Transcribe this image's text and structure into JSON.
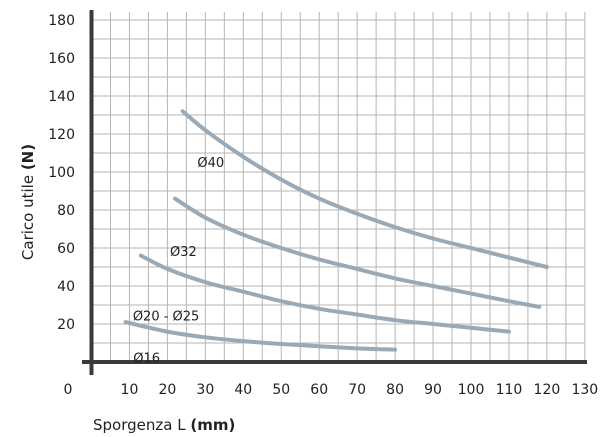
{
  "chart_data": {
    "type": "line",
    "xlabel": {
      "text": "Sporgenza L",
      "unit": "(mm)"
    },
    "ylabel": {
      "text": "Carico utile",
      "unit": "(N)"
    },
    "xlim": [
      0,
      130
    ],
    "ylim": [
      0,
      180
    ],
    "xticks": [
      0,
      10,
      20,
      30,
      40,
      50,
      60,
      70,
      80,
      90,
      100,
      110,
      120,
      130
    ],
    "yticks": [
      20,
      40,
      60,
      80,
      100,
      120,
      140,
      160,
      180
    ],
    "minor_grid_step_x": 5,
    "minor_grid_step_y": 10,
    "grid": true,
    "line_color": "#9aa9b6",
    "grid_color": "#b5b5b5",
    "axis_color": "#3a3a3a",
    "series": [
      {
        "name": "Ø40",
        "points": [
          [
            24,
            132
          ],
          [
            30,
            122
          ],
          [
            40,
            108
          ],
          [
            50,
            96
          ],
          [
            60,
            86
          ],
          [
            70,
            78
          ],
          [
            80,
            71
          ],
          [
            90,
            65
          ],
          [
            100,
            60
          ],
          [
            110,
            55
          ],
          [
            120,
            50
          ]
        ]
      },
      {
        "name": "Ø32",
        "points": [
          [
            22,
            86
          ],
          [
            30,
            76
          ],
          [
            40,
            67
          ],
          [
            50,
            60
          ],
          [
            60,
            54
          ],
          [
            70,
            49
          ],
          [
            80,
            44
          ],
          [
            90,
            40
          ],
          [
            100,
            36
          ],
          [
            110,
            32
          ],
          [
            118,
            29
          ]
        ]
      },
      {
        "name": "Ø20 - Ø25",
        "points": [
          [
            13,
            56
          ],
          [
            20,
            49
          ],
          [
            30,
            42
          ],
          [
            40,
            37
          ],
          [
            50,
            32
          ],
          [
            60,
            28
          ],
          [
            70,
            25
          ],
          [
            80,
            22
          ],
          [
            90,
            20
          ],
          [
            100,
            18
          ],
          [
            110,
            16
          ]
        ]
      },
      {
        "name": "Ø16",
        "points": [
          [
            9,
            21
          ],
          [
            20,
            16
          ],
          [
            30,
            13
          ],
          [
            40,
            11
          ],
          [
            50,
            9.5
          ],
          [
            60,
            8.3
          ],
          [
            70,
            7.2
          ],
          [
            80,
            6.5
          ]
        ]
      }
    ]
  }
}
